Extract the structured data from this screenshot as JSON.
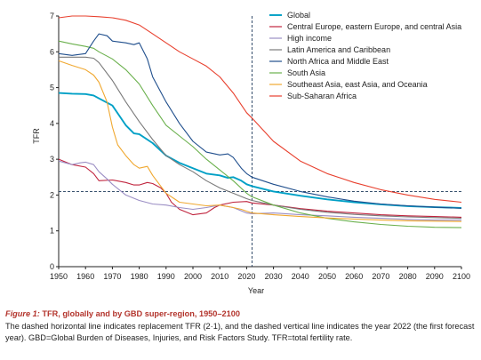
{
  "chart_data": {
    "type": "line",
    "xlabel": "Year",
    "ylabel": "TFR",
    "xlim": [
      1950,
      2100
    ],
    "ylim": [
      0,
      7
    ],
    "xticks": [
      1950,
      1960,
      1970,
      1980,
      1990,
      2000,
      2010,
      2020,
      2030,
      2040,
      2050,
      2060,
      2070,
      2080,
      2090,
      2100
    ],
    "yticks": [
      0,
      1,
      2,
      3,
      4,
      5,
      6,
      7
    ],
    "grid": false,
    "legend_position": "top-right",
    "reference_lines": [
      {
        "orientation": "horizontal",
        "value": 2.1,
        "style": "dashed"
      },
      {
        "orientation": "vertical",
        "value": 2022,
        "style": "dashed"
      }
    ],
    "series": [
      {
        "name": "Global",
        "color": "#00a0c6",
        "x": [
          1950,
          1955,
          1960,
          1963,
          1965,
          1970,
          1975,
          1978,
          1980,
          1985,
          1990,
          1995,
          2000,
          2005,
          2010,
          2013,
          2015,
          2018,
          2020,
          2022,
          2030,
          2040,
          2050,
          2060,
          2070,
          2080,
          2090,
          2100
        ],
        "y": [
          4.85,
          4.83,
          4.82,
          4.78,
          4.7,
          4.5,
          3.95,
          3.72,
          3.7,
          3.45,
          3.1,
          2.9,
          2.75,
          2.6,
          2.55,
          2.48,
          2.5,
          2.4,
          2.3,
          2.25,
          2.1,
          1.98,
          1.88,
          1.8,
          1.74,
          1.69,
          1.66,
          1.64
        ]
      },
      {
        "name": "Central Europe, eastern Europe, and central Asia",
        "color": "#c0243e",
        "x": [
          1950,
          1955,
          1960,
          1963,
          1965,
          1970,
          1975,
          1978,
          1980,
          1983,
          1985,
          1988,
          1990,
          1992,
          1995,
          2000,
          2005,
          2008,
          2010,
          2015,
          2020,
          2022,
          2030,
          2040,
          2050,
          2060,
          2070,
          2080,
          2090,
          2100
        ],
        "y": [
          3.0,
          2.85,
          2.78,
          2.6,
          2.4,
          2.42,
          2.35,
          2.28,
          2.28,
          2.35,
          2.32,
          2.2,
          2.05,
          1.8,
          1.6,
          1.45,
          1.5,
          1.65,
          1.72,
          1.8,
          1.82,
          1.78,
          1.72,
          1.62,
          1.55,
          1.5,
          1.45,
          1.42,
          1.4,
          1.38
        ]
      },
      {
        "name": "High income",
        "color": "#9b8ec4",
        "x": [
          1950,
          1955,
          1958,
          1960,
          1963,
          1965,
          1968,
          1970,
          1975,
          1980,
          1985,
          1990,
          1995,
          2000,
          2005,
          2010,
          2015,
          2020,
          2022,
          2030,
          2040,
          2050,
          2060,
          2070,
          2080,
          2090,
          2100
        ],
        "y": [
          2.95,
          2.85,
          2.9,
          2.92,
          2.85,
          2.65,
          2.45,
          2.3,
          2.0,
          1.85,
          1.75,
          1.72,
          1.65,
          1.6,
          1.65,
          1.72,
          1.65,
          1.5,
          1.48,
          1.5,
          1.45,
          1.42,
          1.38,
          1.35,
          1.32,
          1.3,
          1.3
        ]
      },
      {
        "name": "Latin America and Caribbean",
        "color": "#7a7a7a",
        "x": [
          1950,
          1955,
          1960,
          1963,
          1965,
          1970,
          1975,
          1980,
          1985,
          1990,
          1995,
          2000,
          2005,
          2010,
          2015,
          2020,
          2022,
          2030,
          2040,
          2050,
          2060,
          2070,
          2080,
          2090,
          2100
        ],
        "y": [
          5.85,
          5.85,
          5.85,
          5.82,
          5.7,
          5.2,
          4.6,
          4.05,
          3.55,
          3.1,
          2.85,
          2.65,
          2.4,
          2.2,
          2.05,
          1.9,
          1.85,
          1.72,
          1.6,
          1.52,
          1.46,
          1.42,
          1.39,
          1.37,
          1.35
        ]
      },
      {
        "name": "North Africa and Middle East",
        "color": "#1f4e8c",
        "x": [
          1950,
          1955,
          1960,
          1963,
          1965,
          1968,
          1970,
          1975,
          1978,
          1980,
          1983,
          1985,
          1990,
          1995,
          2000,
          2005,
          2010,
          2013,
          2015,
          2018,
          2020,
          2022,
          2030,
          2040,
          2050,
          2060,
          2070,
          2080,
          2090,
          2100
        ],
        "y": [
          5.95,
          5.9,
          5.95,
          6.3,
          6.5,
          6.45,
          6.3,
          6.25,
          6.2,
          6.25,
          5.8,
          5.3,
          4.6,
          4.0,
          3.5,
          3.2,
          3.12,
          3.15,
          3.05,
          2.75,
          2.6,
          2.5,
          2.3,
          2.1,
          1.95,
          1.83,
          1.75,
          1.7,
          1.66,
          1.63
        ]
      },
      {
        "name": "South Asia",
        "color": "#6ab04c",
        "x": [
          1950,
          1955,
          1960,
          1963,
          1965,
          1970,
          1975,
          1980,
          1985,
          1990,
          1995,
          2000,
          2005,
          2010,
          2015,
          2020,
          2022,
          2030,
          2040,
          2050,
          2060,
          2070,
          2080,
          2090,
          2100
        ],
        "y": [
          6.3,
          6.22,
          6.15,
          6.1,
          6.0,
          5.8,
          5.5,
          5.1,
          4.5,
          3.95,
          3.65,
          3.35,
          3.0,
          2.7,
          2.4,
          2.05,
          1.95,
          1.72,
          1.5,
          1.35,
          1.25,
          1.18,
          1.13,
          1.1,
          1.09
        ]
      },
      {
        "name": "Southeast Asia, east Asia, and Oceania",
        "color": "#f0a830",
        "x": [
          1950,
          1955,
          1960,
          1963,
          1965,
          1968,
          1970,
          1972,
          1975,
          1978,
          1980,
          1983,
          1985,
          1990,
          1995,
          2000,
          2005,
          2010,
          2015,
          2018,
          2020,
          2022,
          2030,
          2040,
          2050,
          2060,
          2070,
          2080,
          2090,
          2100
        ],
        "y": [
          5.75,
          5.62,
          5.5,
          5.35,
          5.15,
          4.6,
          3.9,
          3.4,
          3.1,
          2.85,
          2.75,
          2.8,
          2.55,
          2.05,
          1.8,
          1.75,
          1.7,
          1.72,
          1.65,
          1.6,
          1.55,
          1.5,
          1.45,
          1.4,
          1.36,
          1.33,
          1.3,
          1.28,
          1.27,
          1.26
        ]
      },
      {
        "name": "Sub-Saharan Africa",
        "color": "#e8402e",
        "x": [
          1950,
          1955,
          1960,
          1965,
          1970,
          1975,
          1980,
          1985,
          1990,
          1995,
          2000,
          2005,
          2010,
          2015,
          2020,
          2022,
          2030,
          2040,
          2050,
          2060,
          2070,
          2080,
          2090,
          2100
        ],
        "y": [
          6.95,
          7.0,
          7.0,
          6.98,
          6.95,
          6.88,
          6.75,
          6.5,
          6.25,
          6.0,
          5.8,
          5.6,
          5.3,
          4.85,
          4.3,
          4.15,
          3.5,
          2.95,
          2.6,
          2.35,
          2.15,
          2.0,
          1.88,
          1.8
        ]
      }
    ]
  },
  "caption": {
    "label": "Figure 1:",
    "title": " TFR, globally and by GBD super-region, 1950–2100",
    "body": "The dashed horizontal line indicates replacement TFR (2·1), and the dashed vertical line indicates the year 2022 (the first forecast year). GBD=Global Burden of Diseases, Injuries, and Risk Factors Study. TFR=total fertility rate."
  }
}
